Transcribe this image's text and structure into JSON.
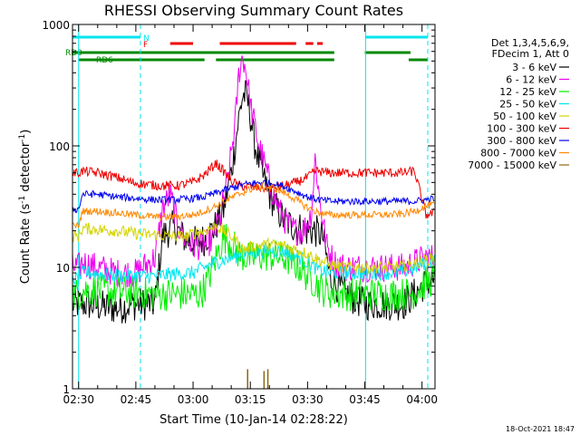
{
  "chart_data": {
    "type": "line",
    "title": "RHESSI Observing Summary Count Rates",
    "xlabel": "Start Time (10-Jan-14 02:28:22)",
    "ylabel": "Count Rate (s⁻¹ detector⁻¹)",
    "ylabel_main": "Count Rate (s",
    "ylabel_sup1": "-1",
    "ylabel_mid": " detector",
    "ylabel_sup2": "-1",
    "ylabel_end": ")",
    "y_scale": "log",
    "ylim": [
      1,
      1000
    ],
    "xlim_minutes": [
      28.4,
      123.4
    ],
    "x_ticks": [
      {
        "minute": 30,
        "label": "02:30"
      },
      {
        "minute": 45,
        "label": "02:45"
      },
      {
        "minute": 60,
        "label": "03:00"
      },
      {
        "minute": 75,
        "label": "03:15"
      },
      {
        "minute": 90,
        "label": "03:30"
      },
      {
        "minute": 105,
        "label": "03:45"
      },
      {
        "minute": 120,
        "label": "04:00"
      }
    ],
    "y_ticks": [
      {
        "value": 1,
        "label": "1"
      },
      {
        "value": 10,
        "label": "10"
      },
      {
        "value": 100,
        "label": "100"
      },
      {
        "value": 1000,
        "label": "1000"
      }
    ],
    "legend_header": [
      "Det 1,3,4,5,6,9,",
      "FDecim 1, Att 0"
    ],
    "legend_placement": "right",
    "timestamp": "18-Oct-2021 18:47",
    "night_lines_minutes": [
      30,
      46.2,
      105.2,
      121.5
    ],
    "flags": [
      {
        "label": "N",
        "color": "#00e5ee",
        "segments": [
          [
            28.4,
            46.2
          ],
          [
            105.2,
            121.5
          ]
        ]
      },
      {
        "label": "F",
        "color": "#ee0000",
        "segments": [
          [
            54,
            60
          ],
          [
            67,
            87
          ],
          [
            89.5,
            91.5
          ],
          [
            92.5,
            94
          ]
        ]
      },
      {
        "label": "RD0",
        "color": "#008800",
        "segments": [
          [
            28.4,
            97
          ],
          [
            105,
            117
          ]
        ]
      },
      {
        "label": "RD6",
        "color": "#008800",
        "segments": [
          [
            30,
            63
          ],
          [
            66,
            97
          ],
          [
            116.5,
            121.5
          ]
        ]
      }
    ],
    "series": [
      {
        "name": "3 - 6 keV",
        "color": "#000000",
        "noise": 0.14,
        "points": [
          [
            28.4,
            5
          ],
          [
            30,
            5
          ],
          [
            32,
            5
          ],
          [
            35,
            4.8
          ],
          [
            40,
            4.6
          ],
          [
            45,
            5
          ],
          [
            50,
            5
          ],
          [
            52,
            18
          ],
          [
            55,
            22
          ],
          [
            57,
            18
          ],
          [
            60,
            16
          ],
          [
            63,
            17
          ],
          [
            66,
            22
          ],
          [
            68,
            30
          ],
          [
            70,
            60
          ],
          [
            72,
            170
          ],
          [
            73,
            260
          ],
          [
            74,
            260
          ],
          [
            75,
            180
          ],
          [
            76,
            110
          ],
          [
            78,
            60
          ],
          [
            80,
            40
          ],
          [
            82,
            30
          ],
          [
            84,
            24
          ],
          [
            86,
            22
          ],
          [
            88,
            21
          ],
          [
            90,
            20
          ],
          [
            92,
            20
          ],
          [
            94,
            18
          ],
          [
            96,
            8
          ],
          [
            100,
            6
          ],
          [
            105,
            5
          ],
          [
            110,
            5
          ],
          [
            115,
            5
          ],
          [
            118,
            6
          ],
          [
            121,
            7.5
          ],
          [
            123.4,
            8
          ]
        ]
      },
      {
        "name": "6 - 12 keV",
        "color": "#ee00ee",
        "noise": 0.12,
        "points": [
          [
            28.4,
            10
          ],
          [
            30,
            10
          ],
          [
            31,
            11
          ],
          [
            35,
            10
          ],
          [
            40,
            9
          ],
          [
            45,
            9
          ],
          [
            50,
            12
          ],
          [
            52,
            30
          ],
          [
            54,
            40
          ],
          [
            56,
            22
          ],
          [
            58,
            17
          ],
          [
            60,
            15
          ],
          [
            63,
            15
          ],
          [
            65,
            17
          ],
          [
            67,
            25
          ],
          [
            69,
            50
          ],
          [
            71,
            150
          ],
          [
            72,
            400
          ],
          [
            73,
            550
          ],
          [
            74,
            400
          ],
          [
            75,
            220
          ],
          [
            77,
            110
          ],
          [
            79,
            65
          ],
          [
            81,
            40
          ],
          [
            83,
            28
          ],
          [
            85,
            22
          ],
          [
            87,
            20
          ],
          [
            89,
            20
          ],
          [
            91,
            28
          ],
          [
            92,
            80
          ],
          [
            93,
            40
          ],
          [
            95,
            15
          ],
          [
            97,
            11
          ],
          [
            100,
            10
          ],
          [
            105,
            10
          ],
          [
            110,
            10
          ],
          [
            115,
            10
          ],
          [
            118,
            11
          ],
          [
            121,
            12
          ],
          [
            123.4,
            12
          ]
        ]
      },
      {
        "name": "12 - 25 keV",
        "color": "#00ee00",
        "noise": 0.14,
        "points": [
          [
            28.4,
            6
          ],
          [
            30,
            6
          ],
          [
            31,
            6.5
          ],
          [
            35,
            6.5
          ],
          [
            40,
            6.2
          ],
          [
            45,
            6.2
          ],
          [
            50,
            6
          ],
          [
            55,
            6
          ],
          [
            60,
            6
          ],
          [
            62,
            6
          ],
          [
            64,
            8
          ],
          [
            66,
            12
          ],
          [
            68,
            18
          ],
          [
            70,
            16
          ],
          [
            72,
            13
          ],
          [
            74,
            12
          ],
          [
            76,
            12
          ],
          [
            78,
            12.5
          ],
          [
            80,
            12.5
          ],
          [
            82,
            12.3
          ],
          [
            84,
            12
          ],
          [
            86,
            11
          ],
          [
            88,
            10
          ],
          [
            90,
            8.5
          ],
          [
            92,
            7.5
          ],
          [
            94,
            6.5
          ],
          [
            96,
            6.2
          ],
          [
            100,
            6
          ],
          [
            105,
            6
          ],
          [
            110,
            6
          ],
          [
            115,
            6
          ],
          [
            118,
            6.2
          ],
          [
            121,
            7.5
          ],
          [
            123.4,
            8
          ]
        ]
      },
      {
        "name": "25 - 50 keV",
        "color": "#00e5ee",
        "noise": 0.06,
        "points": [
          [
            28.4,
            8
          ],
          [
            30,
            8
          ],
          [
            31,
            9
          ],
          [
            33,
            9
          ],
          [
            36,
            8.8
          ],
          [
            40,
            8.6
          ],
          [
            45,
            8.5
          ],
          [
            50,
            8.5
          ],
          [
            55,
            8.8
          ],
          [
            60,
            9
          ],
          [
            63,
            10
          ],
          [
            66,
            11
          ],
          [
            70,
            12
          ],
          [
            73,
            12.8
          ],
          [
            76,
            13.4
          ],
          [
            80,
            13.8
          ],
          [
            84,
            13.5
          ],
          [
            87,
            12.5
          ],
          [
            90,
            11
          ],
          [
            93,
            9.5
          ],
          [
            96,
            9
          ],
          [
            100,
            9
          ],
          [
            104,
            9
          ],
          [
            108,
            9
          ],
          [
            112,
            9
          ],
          [
            115,
            9.2
          ],
          [
            118,
            9.8
          ],
          [
            121,
            11
          ],
          [
            123.4,
            11.5
          ]
        ]
      },
      {
        "name": "50 - 100 keV",
        "color": "#d4d400",
        "noise": 0.05,
        "points": [
          [
            28.4,
            18
          ],
          [
            30,
            18
          ],
          [
            31,
            21
          ],
          [
            35,
            20.5
          ],
          [
            40,
            20
          ],
          [
            45,
            19
          ],
          [
            50,
            18.5
          ],
          [
            55,
            18
          ],
          [
            58,
            18
          ],
          [
            60,
            19
          ],
          [
            63,
            20
          ],
          [
            66,
            22
          ],
          [
            69,
            19
          ],
          [
            71,
            17
          ],
          [
            73,
            14
          ],
          [
            76,
            15
          ],
          [
            80,
            15.5
          ],
          [
            84,
            15
          ],
          [
            87,
            14
          ],
          [
            90,
            13
          ],
          [
            93,
            11.5
          ],
          [
            96,
            10.5
          ],
          [
            100,
            10
          ],
          [
            104,
            10
          ],
          [
            108,
            10
          ],
          [
            112,
            10
          ],
          [
            115,
            10.2
          ],
          [
            118,
            10.8
          ],
          [
            121,
            11.5
          ],
          [
            123.4,
            12
          ]
        ]
      },
      {
        "name": "100 - 300 keV",
        "color": "#ee0000",
        "noise": 0.04,
        "points": [
          [
            28.4,
            60
          ],
          [
            30,
            60
          ],
          [
            31,
            62
          ],
          [
            35,
            60
          ],
          [
            40,
            55
          ],
          [
            44,
            50
          ],
          [
            48,
            48
          ],
          [
            52,
            47
          ],
          [
            56,
            47
          ],
          [
            60,
            50
          ],
          [
            63,
            58
          ],
          [
            66,
            72
          ],
          [
            68,
            62
          ],
          [
            70,
            52
          ],
          [
            72,
            47
          ],
          [
            75,
            46
          ],
          [
            78,
            45
          ],
          [
            81,
            45
          ],
          [
            84,
            47
          ],
          [
            87,
            50
          ],
          [
            90,
            55
          ],
          [
            92,
            62
          ],
          [
            93,
            62
          ],
          [
            95,
            60
          ],
          [
            100,
            60
          ],
          [
            105,
            60
          ],
          [
            110,
            60
          ],
          [
            115,
            60
          ],
          [
            118,
            62
          ],
          [
            119,
            48
          ],
          [
            121,
            27
          ],
          [
            123.4,
            28
          ]
        ]
      },
      {
        "name": "300 - 800 keV",
        "color": "#0000ee",
        "noise": 0.03,
        "points": [
          [
            28.4,
            30
          ],
          [
            30,
            30
          ],
          [
            31,
            40
          ],
          [
            35,
            40
          ],
          [
            40,
            38
          ],
          [
            45,
            37
          ],
          [
            50,
            36
          ],
          [
            55,
            36
          ],
          [
            60,
            37
          ],
          [
            63,
            38
          ],
          [
            66,
            41
          ],
          [
            69,
            44
          ],
          [
            72,
            47
          ],
          [
            75,
            49
          ],
          [
            78,
            50
          ],
          [
            81,
            49
          ],
          [
            84,
            46
          ],
          [
            87,
            42
          ],
          [
            90,
            38
          ],
          [
            93,
            36
          ],
          [
            96,
            35
          ],
          [
            100,
            35
          ],
          [
            105,
            35
          ],
          [
            110,
            35
          ],
          [
            115,
            35
          ],
          [
            118,
            35
          ],
          [
            121,
            36
          ],
          [
            123.4,
            37
          ]
        ]
      },
      {
        "name": "800 - 7000 keV",
        "color": "#ff8800",
        "noise": 0.03,
        "points": [
          [
            28.4,
            22
          ],
          [
            30,
            22
          ],
          [
            31,
            29
          ],
          [
            35,
            29
          ],
          [
            40,
            28
          ],
          [
            45,
            27
          ],
          [
            50,
            26
          ],
          [
            55,
            26
          ],
          [
            60,
            27
          ],
          [
            63,
            29
          ],
          [
            66,
            32
          ],
          [
            69,
            36
          ],
          [
            72,
            40
          ],
          [
            75,
            44
          ],
          [
            78,
            46
          ],
          [
            81,
            45
          ],
          [
            84,
            41
          ],
          [
            87,
            36
          ],
          [
            90,
            31
          ],
          [
            93,
            28
          ],
          [
            96,
            27
          ],
          [
            100,
            27
          ],
          [
            105,
            27
          ],
          [
            110,
            27
          ],
          [
            115,
            27.5
          ],
          [
            118,
            29
          ],
          [
            121,
            32
          ],
          [
            123.4,
            33
          ]
        ]
      },
      {
        "name": "7000 - 15000 keV",
        "color": "#8b6914",
        "noise": 0,
        "points": []
      }
    ],
    "annotations": [
      {
        "series": "7000 - 15000 keV",
        "type": "spikes",
        "minutes": [
          74.3,
          78.6,
          79.6
        ],
        "heights": [
          1.45,
          1.4,
          1.45
        ]
      }
    ]
  }
}
